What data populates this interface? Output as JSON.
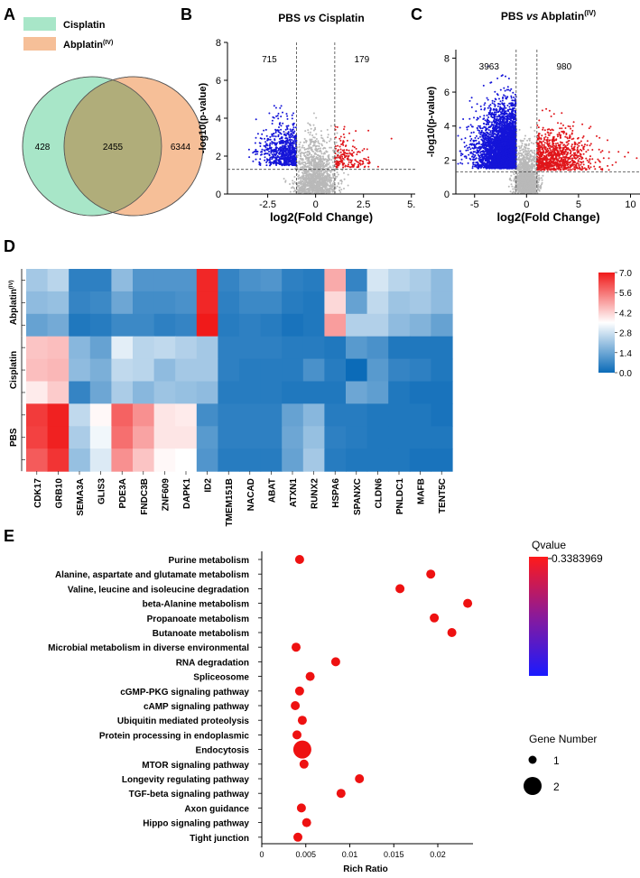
{
  "panels": {
    "a": "A",
    "b": "B",
    "c": "C",
    "d": "D",
    "e": "E"
  },
  "colors": {
    "cisplatin": "#a8e6c8",
    "abplatin": "#f6bf98",
    "overlap": "#b0ad7a",
    "volcano_down": "#1515d8",
    "volcano_up": "#e0161b",
    "volcano_ns": "#b9b9b9",
    "heat_low": "#0b6bb8",
    "heat_mid": "#ffffff",
    "heat_high": "#f01a1a",
    "bubble": "#ee1111"
  },
  "venn": {
    "legend": [
      {
        "label": "Cisplatin"
      },
      {
        "label": "Abplatin",
        "sup": "(IV)"
      }
    ],
    "left_only": "428",
    "overlap": "2455",
    "right_only": "6344"
  },
  "chart_data": [
    {
      "type": "scatter",
      "panel": "B",
      "title_a": "PBS ",
      "title_vs": "vs",
      "title_b": " Cisplatin",
      "title_sup": "",
      "xlabel": "log2(Fold Change)",
      "ylabel": "-log10(p-value)",
      "xlim": [
        -4.6,
        5.2
      ],
      "ylim": [
        0,
        8
      ],
      "xticks": [
        {
          "v": -2.5,
          "l": "-2.5"
        },
        {
          "v": 0,
          "l": "0"
        },
        {
          "v": 2.5,
          "l": "2.5"
        },
        {
          "v": 5,
          "l": "5."
        }
      ],
      "yticks": [
        0,
        2,
        4,
        6,
        8
      ],
      "fc_cut": 1,
      "p_cut": 1.3,
      "n_down": "715",
      "n_up": "179",
      "seed": 7,
      "n_ns": 1400,
      "n_down_pts": 715,
      "n_up_pts": 179
    },
    {
      "type": "scatter",
      "panel": "C",
      "title_a": "PBS ",
      "title_vs": "vs",
      "title_b": " Abplatin",
      "title_sup": "(IV)",
      "xlabel": "log2(Fold Change)",
      "ylabel": "-log10(p-value)",
      "xlim": [
        -6.8,
        11
      ],
      "ylim": [
        0,
        8.5
      ],
      "xticks": [
        {
          "v": -5,
          "l": "-5"
        },
        {
          "v": 0,
          "l": "0"
        },
        {
          "v": 5,
          "l": "5"
        },
        {
          "v": 10,
          "l": "10"
        }
      ],
      "yticks": [
        0,
        2,
        4,
        6,
        8
      ],
      "fc_cut": 1,
      "p_cut": 1.3,
      "n_down": "3963",
      "n_up": "980",
      "seed": 19,
      "n_ns": 1400,
      "n_down_pts": 3963,
      "n_up_pts": 980
    },
    {
      "type": "heatmap",
      "panel": "D",
      "genes": [
        "CDK17",
        "GRB10",
        "SEMA3A",
        "GLIS3",
        "PDE3A",
        "FNDC3B",
        "ZNF609",
        "DAPK1",
        "ID2",
        "TMEM151B",
        "NACAD",
        "ABAT",
        "ATXN1",
        "RUNX2",
        "HSPA6",
        "SPANXC",
        "CLDN6",
        "PNLDC1",
        "MAFB",
        "TENT5C"
      ],
      "groups": [
        {
          "label": "Abplatin",
          "sup": "(IV)"
        },
        {
          "label": "Cisplatin",
          "sup": ""
        },
        {
          "label": "PBS",
          "sup": ""
        }
      ],
      "scale_ticks": [
        "7.0",
        "5.6",
        "4.2",
        "2.8",
        "1.4",
        "0.0"
      ],
      "vmin": 0,
      "vmax": 7,
      "rows": [
        [
          2.2,
          2.5,
          0.5,
          0.5,
          1.9,
          1.0,
          1.0,
          1.0,
          6.8,
          0.6,
          0.9,
          1.0,
          0.5,
          0.4,
          4.8,
          0.6,
          2.9,
          2.5,
          2.3,
          1.9
        ],
        [
          1.9,
          2.0,
          0.6,
          0.7,
          1.4,
          0.8,
          0.8,
          0.9,
          6.8,
          0.5,
          0.7,
          0.7,
          0.4,
          0.3,
          4.1,
          1.3,
          2.6,
          2.1,
          2.2,
          1.9
        ],
        [
          1.3,
          1.5,
          0.3,
          0.4,
          0.7,
          0.7,
          0.5,
          0.6,
          7.0,
          0.4,
          0.5,
          0.4,
          0.2,
          0.3,
          5.0,
          2.4,
          2.4,
          1.9,
          1.7,
          1.3
        ],
        [
          4.4,
          4.5,
          1.8,
          1.3,
          3.1,
          2.5,
          2.6,
          2.4,
          2.2,
          0.5,
          0.5,
          0.5,
          0.4,
          0.4,
          0.3,
          1.1,
          0.9,
          0.3,
          0.3,
          0.3
        ],
        [
          4.5,
          4.6,
          1.9,
          1.6,
          2.6,
          2.5,
          1.9,
          2.2,
          2.2,
          0.5,
          0.4,
          0.4,
          0.4,
          0.9,
          0.4,
          0.0,
          1.1,
          0.6,
          0.5,
          0.3
        ],
        [
          3.8,
          4.3,
          0.6,
          1.4,
          2.3,
          1.8,
          2.1,
          2.0,
          1.9,
          0.4,
          0.4,
          0.4,
          0.3,
          0.3,
          0.3,
          1.4,
          1.2,
          0.3,
          0.2,
          0.2
        ],
        [
          6.5,
          6.9,
          2.6,
          3.6,
          5.9,
          5.2,
          3.9,
          3.8,
          0.8,
          0.5,
          0.5,
          0.5,
          1.3,
          1.8,
          0.4,
          0.4,
          0.3,
          0.3,
          0.3,
          0.2
        ],
        [
          6.4,
          6.9,
          2.3,
          3.3,
          5.7,
          4.9,
          3.9,
          3.9,
          1.1,
          0.5,
          0.5,
          0.5,
          1.4,
          2.0,
          0.5,
          0.4,
          0.3,
          0.3,
          0.3,
          0.3
        ],
        [
          6.0,
          6.6,
          2.0,
          3.0,
          5.2,
          4.4,
          3.6,
          3.5,
          1.0,
          0.4,
          0.4,
          0.4,
          1.3,
          2.2,
          0.4,
          0.3,
          0.3,
          0.3,
          0.2,
          0.2
        ]
      ]
    },
    {
      "type": "scatter",
      "panel": "E",
      "subtype": "bubble",
      "xlabel": "Rich Ratio",
      "xlim": [
        0,
        0.024
      ],
      "xticks": [
        {
          "v": 0,
          "l": "0"
        },
        {
          "v": 0.005,
          "l": "0.005"
        },
        {
          "v": 0.01,
          "l": "0.01"
        },
        {
          "v": 0.015,
          "l": "0.015"
        },
        {
          "v": 0.02,
          "l": "0.02"
        }
      ],
      "legend_qvalue_title": "Qvalue",
      "legend_qvalue_max": "0.3383969",
      "legend_size_title": "Gene Number",
      "legend_sizes": [
        {
          "label": "1",
          "n": 1
        },
        {
          "label": "2",
          "n": 2
        }
      ],
      "pathways": [
        {
          "name": "Purine metabolism",
          "x": 0.0043,
          "n": 1
        },
        {
          "name": "Alanine, aspartate and glutamate metabolism",
          "x": 0.0192,
          "n": 1
        },
        {
          "name": "Valine, leucine and isoleucine degradation",
          "x": 0.0157,
          "n": 1
        },
        {
          "name": "beta-Alanine metabolism",
          "x": 0.0234,
          "n": 1
        },
        {
          "name": "Propanoate metabolism",
          "x": 0.0196,
          "n": 1
        },
        {
          "name": "Butanoate metabolism",
          "x": 0.0216,
          "n": 1
        },
        {
          "name": "Microbial metabolism in diverse environmental",
          "x": 0.0039,
          "n": 1
        },
        {
          "name": "RNA degradation",
          "x": 0.0084,
          "n": 1
        },
        {
          "name": "Spliceosome",
          "x": 0.0055,
          "n": 1
        },
        {
          "name": "cGMP-PKG signaling pathway",
          "x": 0.0043,
          "n": 1
        },
        {
          "name": "cAMP signaling pathway",
          "x": 0.0038,
          "n": 1
        },
        {
          "name": "Ubiquitin mediated proteolysis",
          "x": 0.0046,
          "n": 1
        },
        {
          "name": "Protein processing in endoplasmic",
          "x": 0.004,
          "n": 1
        },
        {
          "name": "Endocytosis",
          "x": 0.0046,
          "n": 2
        },
        {
          "name": "MTOR signaling pathway",
          "x": 0.0048,
          "n": 1
        },
        {
          "name": "Longevity regulating pathway",
          "x": 0.0111,
          "n": 1
        },
        {
          "name": "TGF-beta signaling pathway",
          "x": 0.009,
          "n": 1
        },
        {
          "name": "Axon guidance",
          "x": 0.0045,
          "n": 1
        },
        {
          "name": "Hippo signaling pathway",
          "x": 0.0051,
          "n": 1
        },
        {
          "name": "Tight junction",
          "x": 0.0041,
          "n": 1
        }
      ]
    }
  ]
}
